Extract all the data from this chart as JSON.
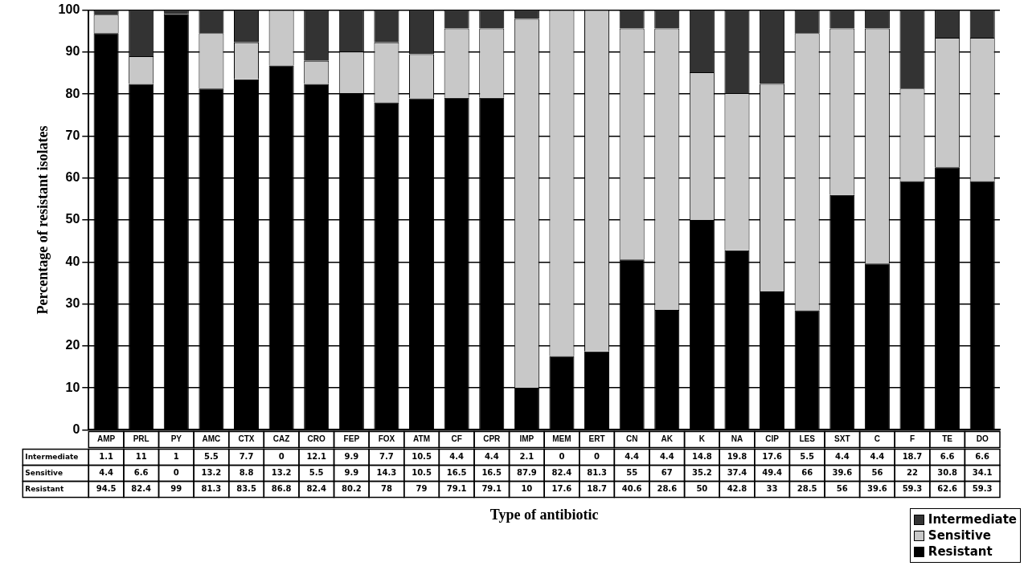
{
  "chart_data": {
    "type": "bar",
    "stacked": true,
    "xlabel": "Type of antibiotic",
    "ylabel": "Percentage of resistant isolates",
    "categories": [
      "AMP",
      "PRL",
      "PY",
      "AMC",
      "CTX",
      "CAZ",
      "CRO",
      "FEP",
      "FOX",
      "ATM",
      "CF",
      "CPR",
      "IMP",
      "MEM",
      "ERT",
      "CN",
      "AK",
      "K",
      "NA",
      "CIP",
      "LES",
      "SXT",
      "C",
      "F",
      "TE",
      "DO"
    ],
    "series": [
      {
        "name": "Resistant",
        "color": "#000000",
        "values": [
          94.5,
          82.4,
          99,
          81.3,
          83.5,
          86.8,
          82.4,
          80.2,
          78,
          79,
          79.1,
          79.1,
          10,
          17.6,
          18.7,
          40.6,
          28.6,
          50,
          42.8,
          33,
          28.5,
          56,
          39.6,
          59.3,
          62.6,
          59.3
        ]
      },
      {
        "name": "Sensitive",
        "color": "#c8c8c8",
        "values": [
          4.4,
          6.6,
          0,
          13.2,
          8.8,
          13.2,
          5.5,
          9.9,
          14.3,
          10.5,
          16.5,
          16.5,
          87.9,
          82.4,
          81.3,
          55,
          67,
          35.2,
          37.4,
          49.4,
          66,
          39.6,
          56,
          22,
          30.8,
          34.1
        ]
      },
      {
        "name": "Intermediate",
        "color": "#333333",
        "values": [
          1.1,
          11,
          1,
          5.5,
          7.7,
          0,
          12.1,
          9.9,
          7.7,
          10.5,
          4.4,
          4.4,
          2.1,
          0,
          0,
          4.4,
          4.4,
          14.8,
          19.8,
          17.6,
          5.5,
          4.4,
          4.4,
          18.7,
          6.6,
          6.6
        ]
      }
    ],
    "ylim": [
      0,
      100
    ],
    "yticks": [
      0,
      10,
      20,
      30,
      40,
      50,
      60,
      70,
      80,
      90,
      100
    ],
    "grid": "y",
    "legend": "bottom right",
    "data_labels": true
  }
}
